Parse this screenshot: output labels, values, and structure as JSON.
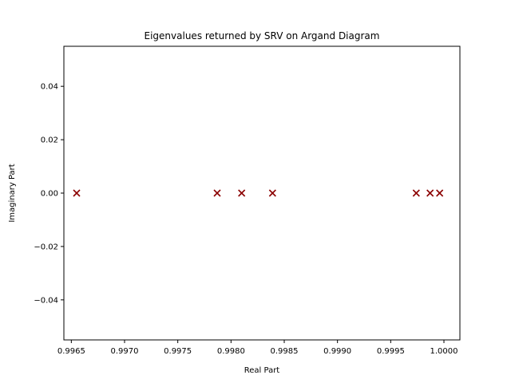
{
  "chart_data": {
    "type": "scatter",
    "title": "Eigenvalues returned by SRV on Argand Diagram",
    "xlabel": "Real Part",
    "ylabel": "Imaginary Part",
    "xlim": [
      0.99643,
      1.00015
    ],
    "ylim": [
      -0.055,
      0.055
    ],
    "xticks": [
      0.9965,
      0.997,
      0.9975,
      0.998,
      0.9985,
      0.999,
      0.9995,
      1.0
    ],
    "xtick_labels": [
      "0.9965",
      "0.9970",
      "0.9975",
      "0.9980",
      "0.9985",
      "0.9990",
      "0.9995",
      "1.0000"
    ],
    "yticks": [
      -0.04,
      -0.02,
      0.0,
      0.02,
      0.04
    ],
    "ytick_labels": [
      "−0.04",
      "−0.02",
      "0.00",
      "0.02",
      "0.04"
    ],
    "grid": false,
    "marker": "x",
    "marker_color": "#8b0000",
    "points": [
      {
        "x": 0.99655,
        "y": 0.0
      },
      {
        "x": 0.99787,
        "y": 0.0
      },
      {
        "x": 0.9981,
        "y": 0.0
      },
      {
        "x": 0.99839,
        "y": 0.0
      },
      {
        "x": 0.99974,
        "y": 0.0
      },
      {
        "x": 0.99987,
        "y": 0.0
      },
      {
        "x": 0.99996,
        "y": 0.0
      }
    ]
  }
}
